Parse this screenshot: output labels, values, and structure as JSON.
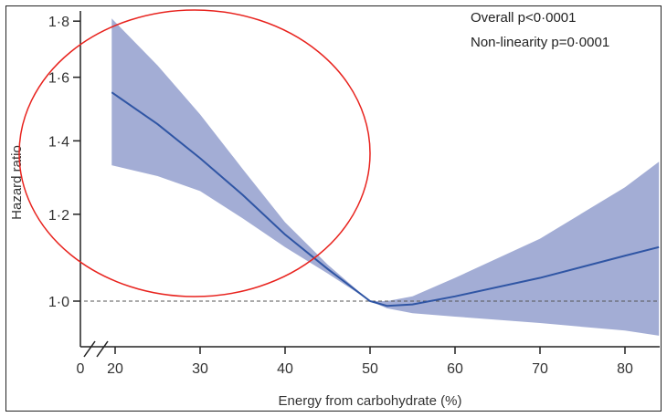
{
  "chart_data": {
    "type": "line",
    "xlabel": "Energy from carbohydrate (%)",
    "ylabel": "Hazard ratio",
    "x_ticks": [
      "0",
      "20",
      "30",
      "40",
      "50",
      "60",
      "70",
      "80"
    ],
    "y_ticks": [
      "1·0",
      "1·2",
      "1·4",
      "1·6",
      "1·8"
    ],
    "y_scale": "log",
    "xlim": [
      18,
      84
    ],
    "ylim": [
      0.91,
      1.82
    ],
    "axis_break": "x-axis between 0 and 20",
    "reference_line": {
      "y": 1.0,
      "style": "dashed"
    },
    "annotations": [
      "Overall p<0·0001",
      "Non-linearity p=0·0001"
    ],
    "highlight": "red ellipse around the 20–45% region",
    "series": [
      {
        "type": "line",
        "x": [
          19.6,
          25,
          30,
          35,
          40,
          45,
          50,
          52,
          55,
          60,
          70,
          80,
          84
        ],
        "y": [
          1.55,
          1.45,
          1.35,
          1.25,
          1.15,
          1.07,
          1.0,
          0.99,
          0.993,
          1.01,
          1.05,
          1.1,
          1.12
        ]
      }
    ],
    "confidence_band": {
      "x": [
        19.6,
        25,
        30,
        35,
        40,
        45,
        50,
        52,
        55,
        60,
        70,
        80,
        84
      ],
      "upper": [
        1.81,
        1.64,
        1.48,
        1.32,
        1.18,
        1.08,
        1.0,
        1.0,
        1.01,
        1.05,
        1.14,
        1.27,
        1.34
      ],
      "lower": [
        1.33,
        1.3,
        1.26,
        1.19,
        1.12,
        1.06,
        1.0,
        0.985,
        0.975,
        0.968,
        0.955,
        0.94,
        0.93
      ]
    },
    "colors": {
      "line": "#2f55a4",
      "band": "#9ea9d3",
      "ellipse": "#e8231e",
      "reference": "#555555"
    }
  }
}
